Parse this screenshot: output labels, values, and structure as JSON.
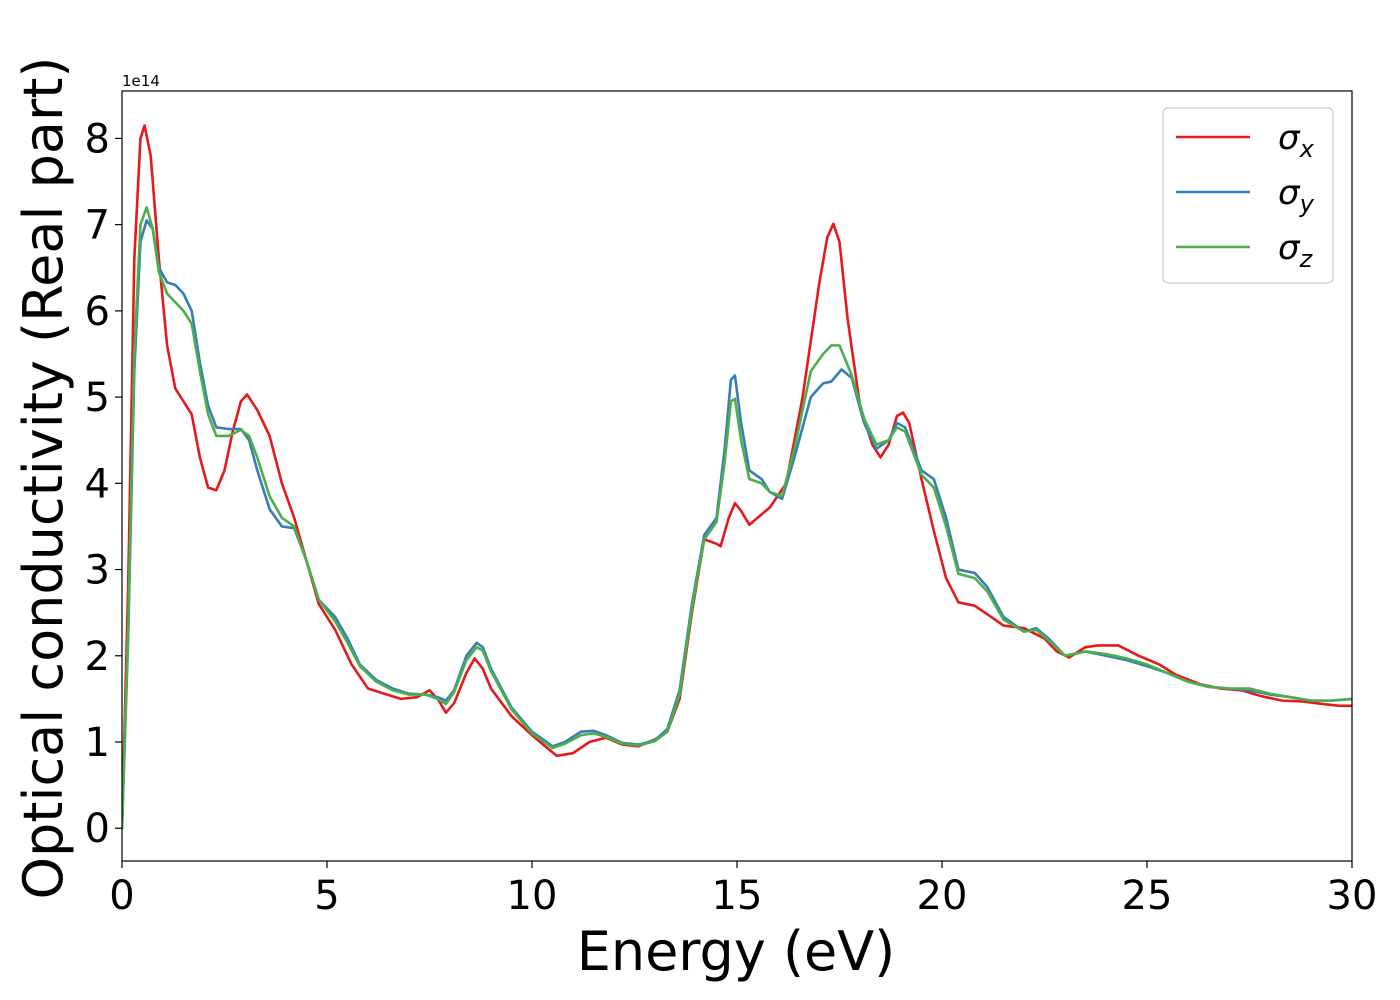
{
  "chart_data": {
    "type": "line",
    "xlabel": "Energy (eV)",
    "ylabel": "Optical conductivity (Real part)",
    "y_offset_label": "1e14",
    "y_scale": 100000000000000.0,
    "xlim": [
      0,
      30
    ],
    "ylim": [
      -0.38,
      8.55
    ],
    "x_ticks": [
      0,
      5,
      10,
      15,
      20,
      25,
      30
    ],
    "y_ticks": [
      0,
      1,
      2,
      3,
      4,
      5,
      6,
      7,
      8
    ],
    "grid": false,
    "legend_position": "top-right",
    "series": [
      {
        "name": "σx",
        "symbol": "σ",
        "subscript": "x",
        "color": "#e41a1c",
        "points": [
          [
            0,
            0
          ],
          [
            0.15,
            2.8
          ],
          [
            0.3,
            6.6
          ],
          [
            0.45,
            8.0
          ],
          [
            0.55,
            8.15
          ],
          [
            0.7,
            7.8
          ],
          [
            0.9,
            6.6
          ],
          [
            1.1,
            5.6
          ],
          [
            1.3,
            5.1
          ],
          [
            1.5,
            4.95
          ],
          [
            1.7,
            4.8
          ],
          [
            1.9,
            4.3
          ],
          [
            2.1,
            3.95
          ],
          [
            2.3,
            3.92
          ],
          [
            2.5,
            4.15
          ],
          [
            2.7,
            4.6
          ],
          [
            2.9,
            4.95
          ],
          [
            3.05,
            5.03
          ],
          [
            3.3,
            4.85
          ],
          [
            3.6,
            4.55
          ],
          [
            3.9,
            4.0
          ],
          [
            4.2,
            3.6
          ],
          [
            4.5,
            3.1
          ],
          [
            4.8,
            2.6
          ],
          [
            5.2,
            2.3
          ],
          [
            5.6,
            1.9
          ],
          [
            6.0,
            1.62
          ],
          [
            6.4,
            1.56
          ],
          [
            6.8,
            1.5
          ],
          [
            7.2,
            1.52
          ],
          [
            7.5,
            1.6
          ],
          [
            7.7,
            1.5
          ],
          [
            7.9,
            1.34
          ],
          [
            8.1,
            1.45
          ],
          [
            8.4,
            1.8
          ],
          [
            8.6,
            1.97
          ],
          [
            8.8,
            1.85
          ],
          [
            9.0,
            1.62
          ],
          [
            9.5,
            1.3
          ],
          [
            10.0,
            1.08
          ],
          [
            10.3,
            0.96
          ],
          [
            10.6,
            0.84
          ],
          [
            11.0,
            0.87
          ],
          [
            11.4,
            1.0
          ],
          [
            11.8,
            1.05
          ],
          [
            12.2,
            0.97
          ],
          [
            12.6,
            0.95
          ],
          [
            13.0,
            1.03
          ],
          [
            13.3,
            1.12
          ],
          [
            13.6,
            1.5
          ],
          [
            13.9,
            2.5
          ],
          [
            14.2,
            3.35
          ],
          [
            14.5,
            3.3
          ],
          [
            14.6,
            3.27
          ],
          [
            14.8,
            3.6
          ],
          [
            14.95,
            3.77
          ],
          [
            15.1,
            3.68
          ],
          [
            15.3,
            3.52
          ],
          [
            15.5,
            3.6
          ],
          [
            15.8,
            3.72
          ],
          [
            16.2,
            4.0
          ],
          [
            16.6,
            5.0
          ],
          [
            17.0,
            6.3
          ],
          [
            17.2,
            6.85
          ],
          [
            17.35,
            7.01
          ],
          [
            17.5,
            6.8
          ],
          [
            17.7,
            5.9
          ],
          [
            18.0,
            4.9
          ],
          [
            18.3,
            4.45
          ],
          [
            18.5,
            4.3
          ],
          [
            18.7,
            4.45
          ],
          [
            18.9,
            4.78
          ],
          [
            19.05,
            4.82
          ],
          [
            19.2,
            4.7
          ],
          [
            19.5,
            4.05
          ],
          [
            19.8,
            3.45
          ],
          [
            20.1,
            2.9
          ],
          [
            20.4,
            2.62
          ],
          [
            20.8,
            2.58
          ],
          [
            21.2,
            2.45
          ],
          [
            21.5,
            2.35
          ],
          [
            22.0,
            2.32
          ],
          [
            22.5,
            2.2
          ],
          [
            22.8,
            2.05
          ],
          [
            23.1,
            1.98
          ],
          [
            23.5,
            2.1
          ],
          [
            23.8,
            2.12
          ],
          [
            24.3,
            2.12
          ],
          [
            24.8,
            2.0
          ],
          [
            25.3,
            1.9
          ],
          [
            25.7,
            1.78
          ],
          [
            26.3,
            1.67
          ],
          [
            26.8,
            1.62
          ],
          [
            27.3,
            1.6
          ],
          [
            27.8,
            1.53
          ],
          [
            28.3,
            1.48
          ],
          [
            28.8,
            1.47
          ],
          [
            29.3,
            1.44
          ],
          [
            29.7,
            1.42
          ],
          [
            30,
            1.42
          ]
        ]
      },
      {
        "name": "σy",
        "symbol": "σ",
        "subscript": "y",
        "color": "#377eb8",
        "points": [
          [
            0,
            0
          ],
          [
            0.15,
            2.2
          ],
          [
            0.3,
            5.3
          ],
          [
            0.45,
            6.8
          ],
          [
            0.6,
            7.05
          ],
          [
            0.75,
            6.95
          ],
          [
            0.9,
            6.5
          ],
          [
            1.1,
            6.33
          ],
          [
            1.3,
            6.3
          ],
          [
            1.5,
            6.2
          ],
          [
            1.7,
            6.0
          ],
          [
            1.9,
            5.4
          ],
          [
            2.1,
            4.9
          ],
          [
            2.3,
            4.65
          ],
          [
            2.6,
            4.63
          ],
          [
            2.9,
            4.63
          ],
          [
            3.1,
            4.5
          ],
          [
            3.3,
            4.15
          ],
          [
            3.6,
            3.7
          ],
          [
            3.9,
            3.5
          ],
          [
            4.2,
            3.48
          ],
          [
            4.5,
            3.1
          ],
          [
            4.8,
            2.65
          ],
          [
            5.2,
            2.45
          ],
          [
            5.5,
            2.2
          ],
          [
            5.8,
            1.9
          ],
          [
            6.2,
            1.72
          ],
          [
            6.6,
            1.62
          ],
          [
            7.0,
            1.56
          ],
          [
            7.4,
            1.55
          ],
          [
            7.7,
            1.52
          ],
          [
            7.9,
            1.48
          ],
          [
            8.1,
            1.6
          ],
          [
            8.4,
            2.0
          ],
          [
            8.65,
            2.15
          ],
          [
            8.8,
            2.1
          ],
          [
            9.0,
            1.85
          ],
          [
            9.5,
            1.4
          ],
          [
            10.0,
            1.12
          ],
          [
            10.3,
            1.02
          ],
          [
            10.5,
            0.95
          ],
          [
            10.8,
            1.0
          ],
          [
            11.2,
            1.12
          ],
          [
            11.5,
            1.13
          ],
          [
            11.8,
            1.08
          ],
          [
            12.2,
            0.99
          ],
          [
            12.6,
            0.97
          ],
          [
            13.0,
            1.02
          ],
          [
            13.3,
            1.15
          ],
          [
            13.6,
            1.6
          ],
          [
            13.9,
            2.6
          ],
          [
            14.2,
            3.4
          ],
          [
            14.5,
            3.6
          ],
          [
            14.7,
            4.4
          ],
          [
            14.85,
            5.2
          ],
          [
            14.95,
            5.25
          ],
          [
            15.1,
            4.7
          ],
          [
            15.3,
            4.15
          ],
          [
            15.6,
            4.05
          ],
          [
            15.8,
            3.9
          ],
          [
            16.1,
            3.82
          ],
          [
            16.4,
            4.3
          ],
          [
            16.8,
            5.0
          ],
          [
            17.1,
            5.16
          ],
          [
            17.3,
            5.18
          ],
          [
            17.55,
            5.32
          ],
          [
            17.8,
            5.22
          ],
          [
            18.1,
            4.7
          ],
          [
            18.4,
            4.4
          ],
          [
            18.7,
            4.5
          ],
          [
            18.9,
            4.7
          ],
          [
            19.1,
            4.65
          ],
          [
            19.5,
            4.15
          ],
          [
            19.8,
            4.05
          ],
          [
            20.1,
            3.6
          ],
          [
            20.4,
            3.0
          ],
          [
            20.8,
            2.96
          ],
          [
            21.1,
            2.8
          ],
          [
            21.5,
            2.45
          ],
          [
            22.0,
            2.28
          ],
          [
            22.3,
            2.32
          ],
          [
            22.6,
            2.2
          ],
          [
            23.0,
            2.0
          ],
          [
            23.5,
            2.05
          ],
          [
            24.0,
            2.0
          ],
          [
            24.5,
            1.95
          ],
          [
            25.0,
            1.88
          ],
          [
            25.5,
            1.8
          ],
          [
            26.0,
            1.7
          ],
          [
            26.5,
            1.64
          ],
          [
            27.0,
            1.62
          ],
          [
            27.5,
            1.6
          ],
          [
            28.0,
            1.55
          ],
          [
            28.5,
            1.52
          ],
          [
            29.0,
            1.48
          ],
          [
            29.5,
            1.48
          ],
          [
            30,
            1.5
          ]
        ]
      },
      {
        "name": "σz",
        "symbol": "σ",
        "subscript": "z",
        "color": "#4daf4a",
        "points": [
          [
            0,
            0
          ],
          [
            0.15,
            2.3
          ],
          [
            0.3,
            5.5
          ],
          [
            0.45,
            7.0
          ],
          [
            0.6,
            7.2
          ],
          [
            0.75,
            6.95
          ],
          [
            0.9,
            6.45
          ],
          [
            1.1,
            6.2
          ],
          [
            1.3,
            6.1
          ],
          [
            1.5,
            6.0
          ],
          [
            1.7,
            5.85
          ],
          [
            1.9,
            5.3
          ],
          [
            2.1,
            4.8
          ],
          [
            2.3,
            4.55
          ],
          [
            2.6,
            4.55
          ],
          [
            2.9,
            4.62
          ],
          [
            3.1,
            4.55
          ],
          [
            3.3,
            4.3
          ],
          [
            3.6,
            3.85
          ],
          [
            3.9,
            3.6
          ],
          [
            4.2,
            3.5
          ],
          [
            4.5,
            3.1
          ],
          [
            4.8,
            2.65
          ],
          [
            5.2,
            2.4
          ],
          [
            5.5,
            2.15
          ],
          [
            5.8,
            1.88
          ],
          [
            6.2,
            1.7
          ],
          [
            6.6,
            1.6
          ],
          [
            7.0,
            1.55
          ],
          [
            7.4,
            1.55
          ],
          [
            7.7,
            1.5
          ],
          [
            7.9,
            1.44
          ],
          [
            8.1,
            1.58
          ],
          [
            8.4,
            1.95
          ],
          [
            8.65,
            2.1
          ],
          [
            8.8,
            2.06
          ],
          [
            9.0,
            1.82
          ],
          [
            9.5,
            1.38
          ],
          [
            10.0,
            1.1
          ],
          [
            10.3,
            1.0
          ],
          [
            10.5,
            0.93
          ],
          [
            10.8,
            0.98
          ],
          [
            11.2,
            1.08
          ],
          [
            11.5,
            1.1
          ],
          [
            11.8,
            1.06
          ],
          [
            12.2,
            0.98
          ],
          [
            12.6,
            0.96
          ],
          [
            13.0,
            1.01
          ],
          [
            13.3,
            1.12
          ],
          [
            13.6,
            1.55
          ],
          [
            13.9,
            2.55
          ],
          [
            14.2,
            3.35
          ],
          [
            14.5,
            3.55
          ],
          [
            14.7,
            4.25
          ],
          [
            14.85,
            4.95
          ],
          [
            14.95,
            4.98
          ],
          [
            15.1,
            4.5
          ],
          [
            15.3,
            4.05
          ],
          [
            15.6,
            4.0
          ],
          [
            15.8,
            3.9
          ],
          [
            16.1,
            3.85
          ],
          [
            16.4,
            4.4
          ],
          [
            16.8,
            5.3
          ],
          [
            17.1,
            5.5
          ],
          [
            17.3,
            5.6
          ],
          [
            17.5,
            5.6
          ],
          [
            17.8,
            5.25
          ],
          [
            18.1,
            4.75
          ],
          [
            18.4,
            4.45
          ],
          [
            18.7,
            4.5
          ],
          [
            18.9,
            4.65
          ],
          [
            19.1,
            4.6
          ],
          [
            19.5,
            4.1
          ],
          [
            19.8,
            3.95
          ],
          [
            20.1,
            3.5
          ],
          [
            20.4,
            2.95
          ],
          [
            20.8,
            2.9
          ],
          [
            21.1,
            2.75
          ],
          [
            21.5,
            2.42
          ],
          [
            22.0,
            2.28
          ],
          [
            22.3,
            2.3
          ],
          [
            22.6,
            2.18
          ],
          [
            23.0,
            2.0
          ],
          [
            23.5,
            2.05
          ],
          [
            24.0,
            2.02
          ],
          [
            24.5,
            1.97
          ],
          [
            25.0,
            1.9
          ],
          [
            25.5,
            1.8
          ],
          [
            26.0,
            1.7
          ],
          [
            26.5,
            1.64
          ],
          [
            27.0,
            1.62
          ],
          [
            27.5,
            1.62
          ],
          [
            28.0,
            1.56
          ],
          [
            28.5,
            1.52
          ],
          [
            29.0,
            1.48
          ],
          [
            29.5,
            1.48
          ],
          [
            30,
            1.5
          ]
        ]
      }
    ]
  }
}
